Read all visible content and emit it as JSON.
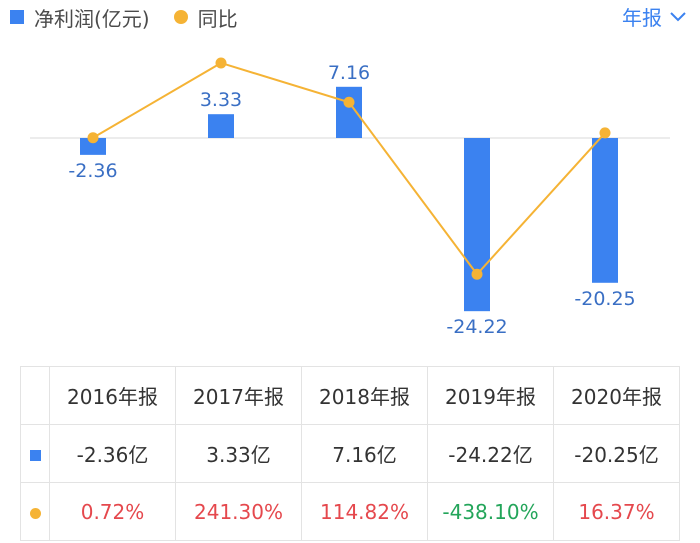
{
  "legend": {
    "bar_label": "净利润(亿元)",
    "line_label": "同比"
  },
  "period_selector": {
    "label": "年报"
  },
  "colors": {
    "bar": "#3b82f0",
    "line": "#f5b335",
    "positive": "#e5484d",
    "negative": "#23a55a"
  },
  "chart_data": {
    "type": "bar",
    "categories": [
      "2016年报",
      "2017年报",
      "2018年报",
      "2019年报",
      "2020年报"
    ],
    "series": [
      {
        "name": "净利润(亿元)",
        "type": "bar",
        "values": [
          -2.36,
          3.33,
          7.16,
          -24.22,
          -20.25
        ],
        "labels": [
          "-2.36",
          "3.33",
          "7.16",
          "-24.22",
          "-20.25"
        ]
      },
      {
        "name": "同比",
        "type": "line",
        "values": [
          0.72,
          241.3,
          114.82,
          -438.1,
          16.37
        ]
      }
    ],
    "legend_position": "top-left"
  },
  "table": {
    "headers": [
      "2016年报",
      "2017年报",
      "2018年报",
      "2019年报",
      "2020年报"
    ],
    "profit_row": [
      "-2.36亿",
      "3.33亿",
      "7.16亿",
      "-24.22亿",
      "-20.25亿"
    ],
    "yoy_row": [
      "0.72%",
      "241.30%",
      "114.82%",
      "-438.10%",
      "16.37%"
    ]
  }
}
